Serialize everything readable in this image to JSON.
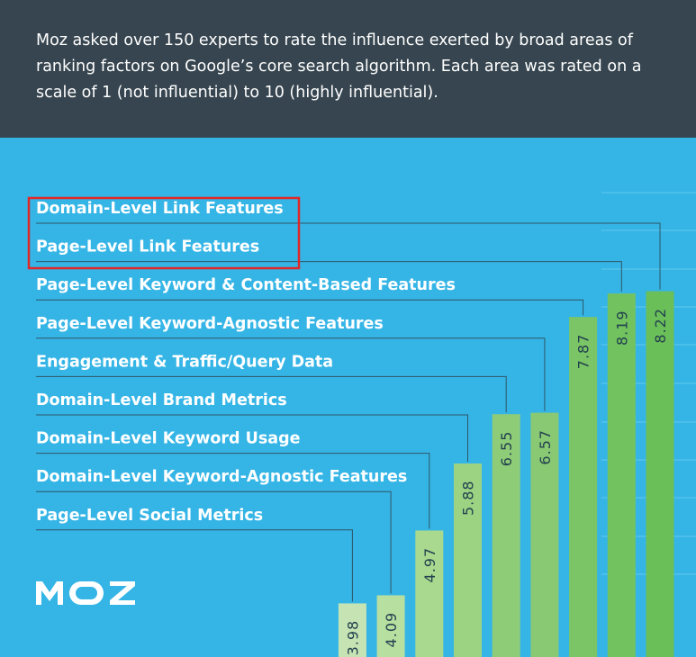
{
  "header": {
    "intro_text": "Moz asked over 150 experts to rate the influence exerted by broad areas of ranking factors on Google’s core search algorithm. Each area was rated on a scale of 1 (not influential) to 10 (highly influential)."
  },
  "logo": {
    "text": "MOZ"
  },
  "colors": {
    "header_bg": "#36454f",
    "chart_bg": "#35b5e6",
    "highlight_box": "#e02727",
    "bar_palette": [
      "#c6e4b3",
      "#b7dfa0",
      "#a9d98f",
      "#9cd383",
      "#8fcc78",
      "#89c973",
      "#7bc566",
      "#72c25f",
      "#6bbf58"
    ]
  },
  "chart_data": {
    "type": "bar",
    "title": "",
    "xlabel": "",
    "ylabel": "",
    "ylim": [
      0,
      10
    ],
    "grid": true,
    "categories": [
      "Domain-Level Link Features",
      "Page-Level Link Features",
      "Page-Level Keyword & Content-Based Features",
      "Page-Level Keyword-Agnostic Features",
      "Engagement & Traffic/Query Data",
      "Domain-Level Brand Metrics",
      "Domain-Level Keyword Usage",
      "Domain-Level Keyword-Agnostic Features",
      "Page-Level Social Metrics"
    ],
    "values": [
      8.22,
      8.19,
      7.87,
      6.57,
      6.55,
      5.88,
      4.97,
      4.09,
      3.98
    ],
    "value_labels": [
      "8.22",
      "8.19",
      "7.87",
      "6.57",
      "6.55",
      "5.88",
      "4.97",
      "4.09",
      "3.98"
    ],
    "highlighted_categories": [
      "Domain-Level Link Features",
      "Page-Level Link Features"
    ]
  }
}
